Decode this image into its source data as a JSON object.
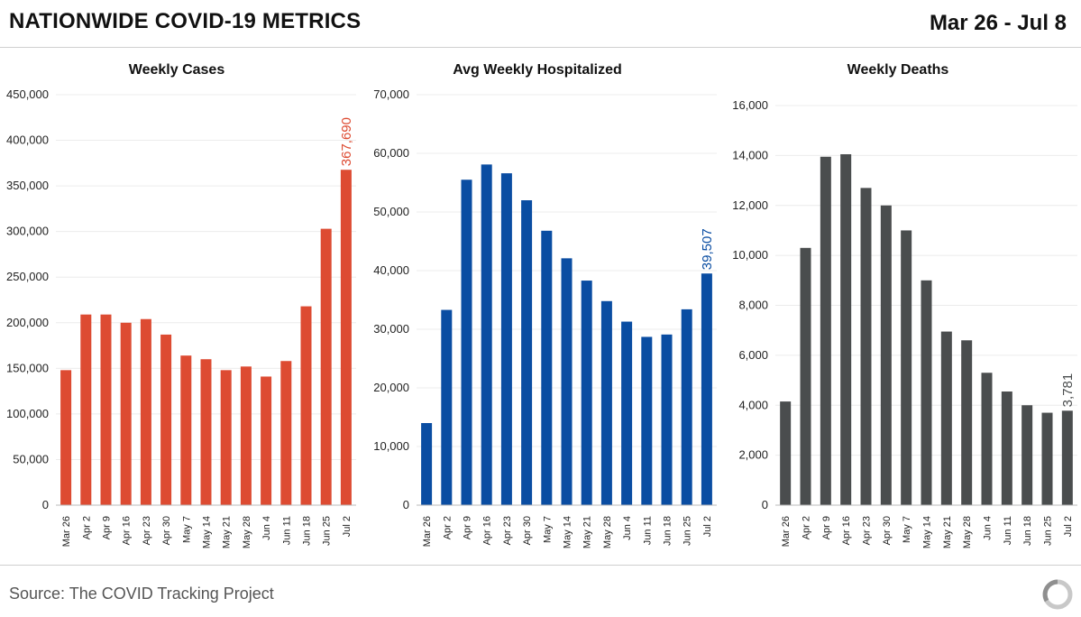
{
  "header": {
    "title": "NATIONWIDE COVID-19 METRICS",
    "date_range": "Mar 26 - Jul 8"
  },
  "footer": {
    "source": "Source: The COVID Tracking Project",
    "logo_icon": "covid-tracking-project-logo-icon"
  },
  "chart_data": [
    {
      "type": "bar",
      "title": "Weekly Cases",
      "color": "#dd4b32",
      "categories": [
        "Mar 26",
        "Apr 2",
        "Apr 9",
        "Apr 16",
        "Apr 23",
        "Apr 30",
        "May 7",
        "May 14",
        "May 21",
        "May 28",
        "Jun 4",
        "Jun 11",
        "Jun 18",
        "Jun 25",
        "Jul 2"
      ],
      "values": [
        148000,
        209000,
        209000,
        200000,
        204000,
        187000,
        164000,
        160000,
        148000,
        152000,
        141000,
        158000,
        218000,
        303000,
        367690
      ],
      "ylim": [
        0,
        450000
      ],
      "yticks": [
        0,
        50000,
        100000,
        150000,
        200000,
        250000,
        300000,
        350000,
        400000,
        450000
      ],
      "ytick_labels": [
        "0",
        "50,000",
        "100,000",
        "150,000",
        "200,000",
        "250,000",
        "300,000",
        "350,000",
        "400,000",
        "450,000"
      ],
      "annotation": {
        "category": "Jul 2",
        "label": "367,690"
      }
    },
    {
      "type": "bar",
      "title": "Avg Weekly Hospitalized",
      "color": "#0a4da2",
      "categories": [
        "Mar 26",
        "Apr 2",
        "Apr 9",
        "Apr 16",
        "Apr 23",
        "Apr 30",
        "May 7",
        "May 14",
        "May 21",
        "May 28",
        "Jun 4",
        "Jun 11",
        "Jun 18",
        "Jun 25",
        "Jul 2"
      ],
      "values": [
        14000,
        33300,
        55500,
        58100,
        56600,
        52000,
        46800,
        42100,
        38300,
        34800,
        31300,
        28700,
        29100,
        33400,
        39507
      ],
      "ylim": [
        0,
        70000
      ],
      "yticks": [
        0,
        10000,
        20000,
        30000,
        40000,
        50000,
        60000,
        70000
      ],
      "ytick_labels": [
        "0",
        "10,000",
        "20,000",
        "30,000",
        "40,000",
        "50,000",
        "60,000",
        "70,000"
      ],
      "annotation": {
        "category": "Jul 2",
        "label": "39,507"
      }
    },
    {
      "type": "bar",
      "title": "Weekly Deaths",
      "color": "#4a4d4e",
      "categories": [
        "Mar 26",
        "Apr 2",
        "Apr 9",
        "Apr 16",
        "Apr 23",
        "Apr 30",
        "May 7",
        "May 14",
        "May 21",
        "May 28",
        "Jun 4",
        "Jun 11",
        "Jun 18",
        "Jun 25",
        "Jul 2"
      ],
      "values": [
        4150,
        10300,
        13950,
        14050,
        12700,
        12000,
        11000,
        9000,
        6950,
        6600,
        5300,
        4550,
        4000,
        3700,
        3781
      ],
      "ylim": [
        0,
        16000
      ],
      "yticks": [
        0,
        2000,
        4000,
        6000,
        8000,
        10000,
        12000,
        14000,
        16000
      ],
      "ytick_labels": [
        "0",
        "2,000",
        "4,000",
        "6,000",
        "8,000",
        "10,000",
        "12,000",
        "14,000",
        "16,000"
      ],
      "annotation": {
        "category": "Jul 2",
        "label": "3,781"
      }
    }
  ]
}
